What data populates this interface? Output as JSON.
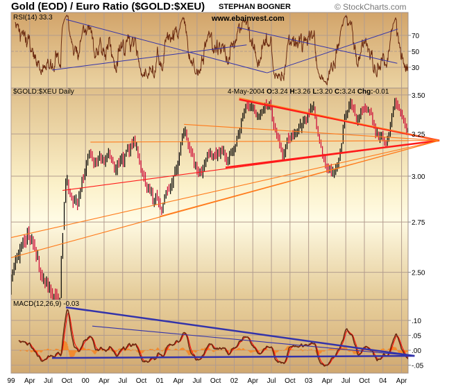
{
  "header": {
    "title": "Gold (EOD) / Euro Ratio ($GOLD:$XEU)",
    "author": "STEPHAN BOGNER",
    "copyright": "© StockCharts.com",
    "website": "www.ebainvest.com"
  },
  "colors": {
    "price_up": "#000000",
    "price_down": "#cc0033",
    "trend_red": "#ff1a1a",
    "trend_orange": "#ff7a1a",
    "trend_blue": "#3333aa",
    "indicator": "#6b2a10",
    "signal": "#ff0000",
    "histogram": "#f08a30"
  },
  "chart_data": [
    {
      "type": "line",
      "title": "RSI(14) 33.3",
      "indicator": "RSI(14)",
      "last_value": 33.3,
      "ylim": [
        10,
        100
      ],
      "yticks": [
        "70",
        "50",
        "30"
      ],
      "ytick_values": [
        70,
        50,
        30
      ],
      "trendlines": [
        {
          "from": [
            8.85,
            90
          ],
          "to": [
            41.3,
            23
          ]
        },
        {
          "from": [
            41.3,
            23
          ],
          "to": [
            62.4,
            78
          ]
        },
        {
          "from": [
            6.6,
            26.5
          ],
          "to": [
            38,
            58
          ]
        },
        {
          "from": [
            36.5,
            80
          ],
          "to": [
            62.3,
            35
          ]
        }
      ]
    },
    {
      "type": "bar",
      "title": "$GOLD:$XEU Daily",
      "date": "4-May-2004",
      "ohlc": {
        "O": "O:",
        "Ov": "3.24",
        "H": "H:",
        "Hv": "3.26",
        "L": "L:",
        "Lv": "3.20",
        "C": "C:",
        "Cv": "3.24",
        "Chg": "Chg:",
        "Chgv": "-0.01"
      },
      "scale": "log",
      "ylim": [
        2.32,
        3.57
      ],
      "yticks": [
        "3.50",
        "3.25",
        "3.00",
        "2.75",
        "2.50"
      ],
      "ytick_values": [
        3.5,
        3.25,
        3.0,
        2.75,
        2.5
      ],
      "x_start": "Jan 1999",
      "monthly_close": [
        2.42,
        2.55,
        2.62,
        2.7,
        2.62,
        2.5,
        2.45,
        2.38,
        2.36,
        3.0,
        2.82,
        2.85,
        3.05,
        3.15,
        3.05,
        3.1,
        3.12,
        3.05,
        3.1,
        3.15,
        3.2,
        3.05,
        2.95,
        2.88,
        2.85,
        2.88,
        2.95,
        3.05,
        3.28,
        3.18,
        3.05,
        3.0,
        3.1,
        3.12,
        3.15,
        3.08,
        3.12,
        3.28,
        3.45,
        3.4,
        3.38,
        3.42,
        3.45,
        3.25,
        3.12,
        3.2,
        3.25,
        3.3,
        3.4,
        3.45,
        3.2,
        3.05,
        3.02,
        3.05,
        3.35,
        3.45,
        3.35,
        3.4,
        3.35,
        3.25,
        3.25,
        3.18,
        3.48,
        3.4,
        3.24
      ],
      "trendlines": [
        {
          "style": "red-thick",
          "from": [
            36.8,
            3.47
          ],
          "to": [
            69.1,
            3.21
          ]
        },
        {
          "style": "red-thick",
          "from": [
            34.6,
            3.05
          ],
          "to": [
            69.1,
            3.21
          ]
        },
        {
          "style": "red",
          "from": [
            8.3,
            2.92
          ],
          "to": [
            69.1,
            3.21
          ]
        },
        {
          "style": "orange",
          "from": [
            0,
            2.57
          ],
          "to": [
            69.1,
            3.21
          ]
        },
        {
          "style": "orange",
          "from": [
            0,
            2.67
          ],
          "to": [
            69.1,
            3.21
          ]
        },
        {
          "style": "orange",
          "from": [
            12.8,
            3.2
          ],
          "to": [
            69.1,
            3.21
          ]
        },
        {
          "style": "orange",
          "from": [
            27.9,
            3.31
          ],
          "to": [
            69.1,
            3.21
          ]
        },
        {
          "style": "orange",
          "from": [
            36.8,
            3.48
          ],
          "to": [
            69.1,
            3.21
          ]
        },
        {
          "style": "orange",
          "from": [
            24,
            2.78
          ],
          "to": [
            69.1,
            3.21
          ]
        }
      ]
    },
    {
      "type": "line",
      "title": "MACD(12,26,9) -0.03",
      "indicator": "MACD(12,26,9)",
      "last_value": -0.03,
      "ylim": [
        -0.08,
        0.17
      ],
      "yticks": [
        ".10",
        ".05",
        ".00",
        "-.05"
      ],
      "ytick_values": [
        0.1,
        0.05,
        0.0,
        -0.05
      ],
      "trendlines": [
        {
          "style": "thick",
          "from": [
            8.85,
            0.144
          ],
          "to": [
            65.1,
            -0.019
          ]
        },
        {
          "style": "thin",
          "from": [
            13.1,
            0.081
          ],
          "to": [
            65.1,
            -0.019
          ]
        },
        {
          "style": "thick",
          "from": [
            6.6,
            -0.026
          ],
          "to": [
            65.1,
            -0.019
          ]
        }
      ]
    }
  ],
  "x_axis": {
    "labels": [
      "99",
      "Apr",
      "Jul",
      "Oct",
      "00",
      "Apr",
      "Jul",
      "Oct",
      "01",
      "Apr",
      "Jul",
      "Oct",
      "02",
      "Apr",
      "Jul",
      "Oct",
      "03",
      "Apr",
      "Jul",
      "Oct",
      "04",
      "Apr"
    ],
    "label_months": [
      0,
      3,
      6,
      9,
      12,
      15,
      18,
      21,
      24,
      27,
      30,
      33,
      36,
      39,
      42,
      45,
      48,
      51,
      54,
      57,
      60,
      63
    ]
  }
}
